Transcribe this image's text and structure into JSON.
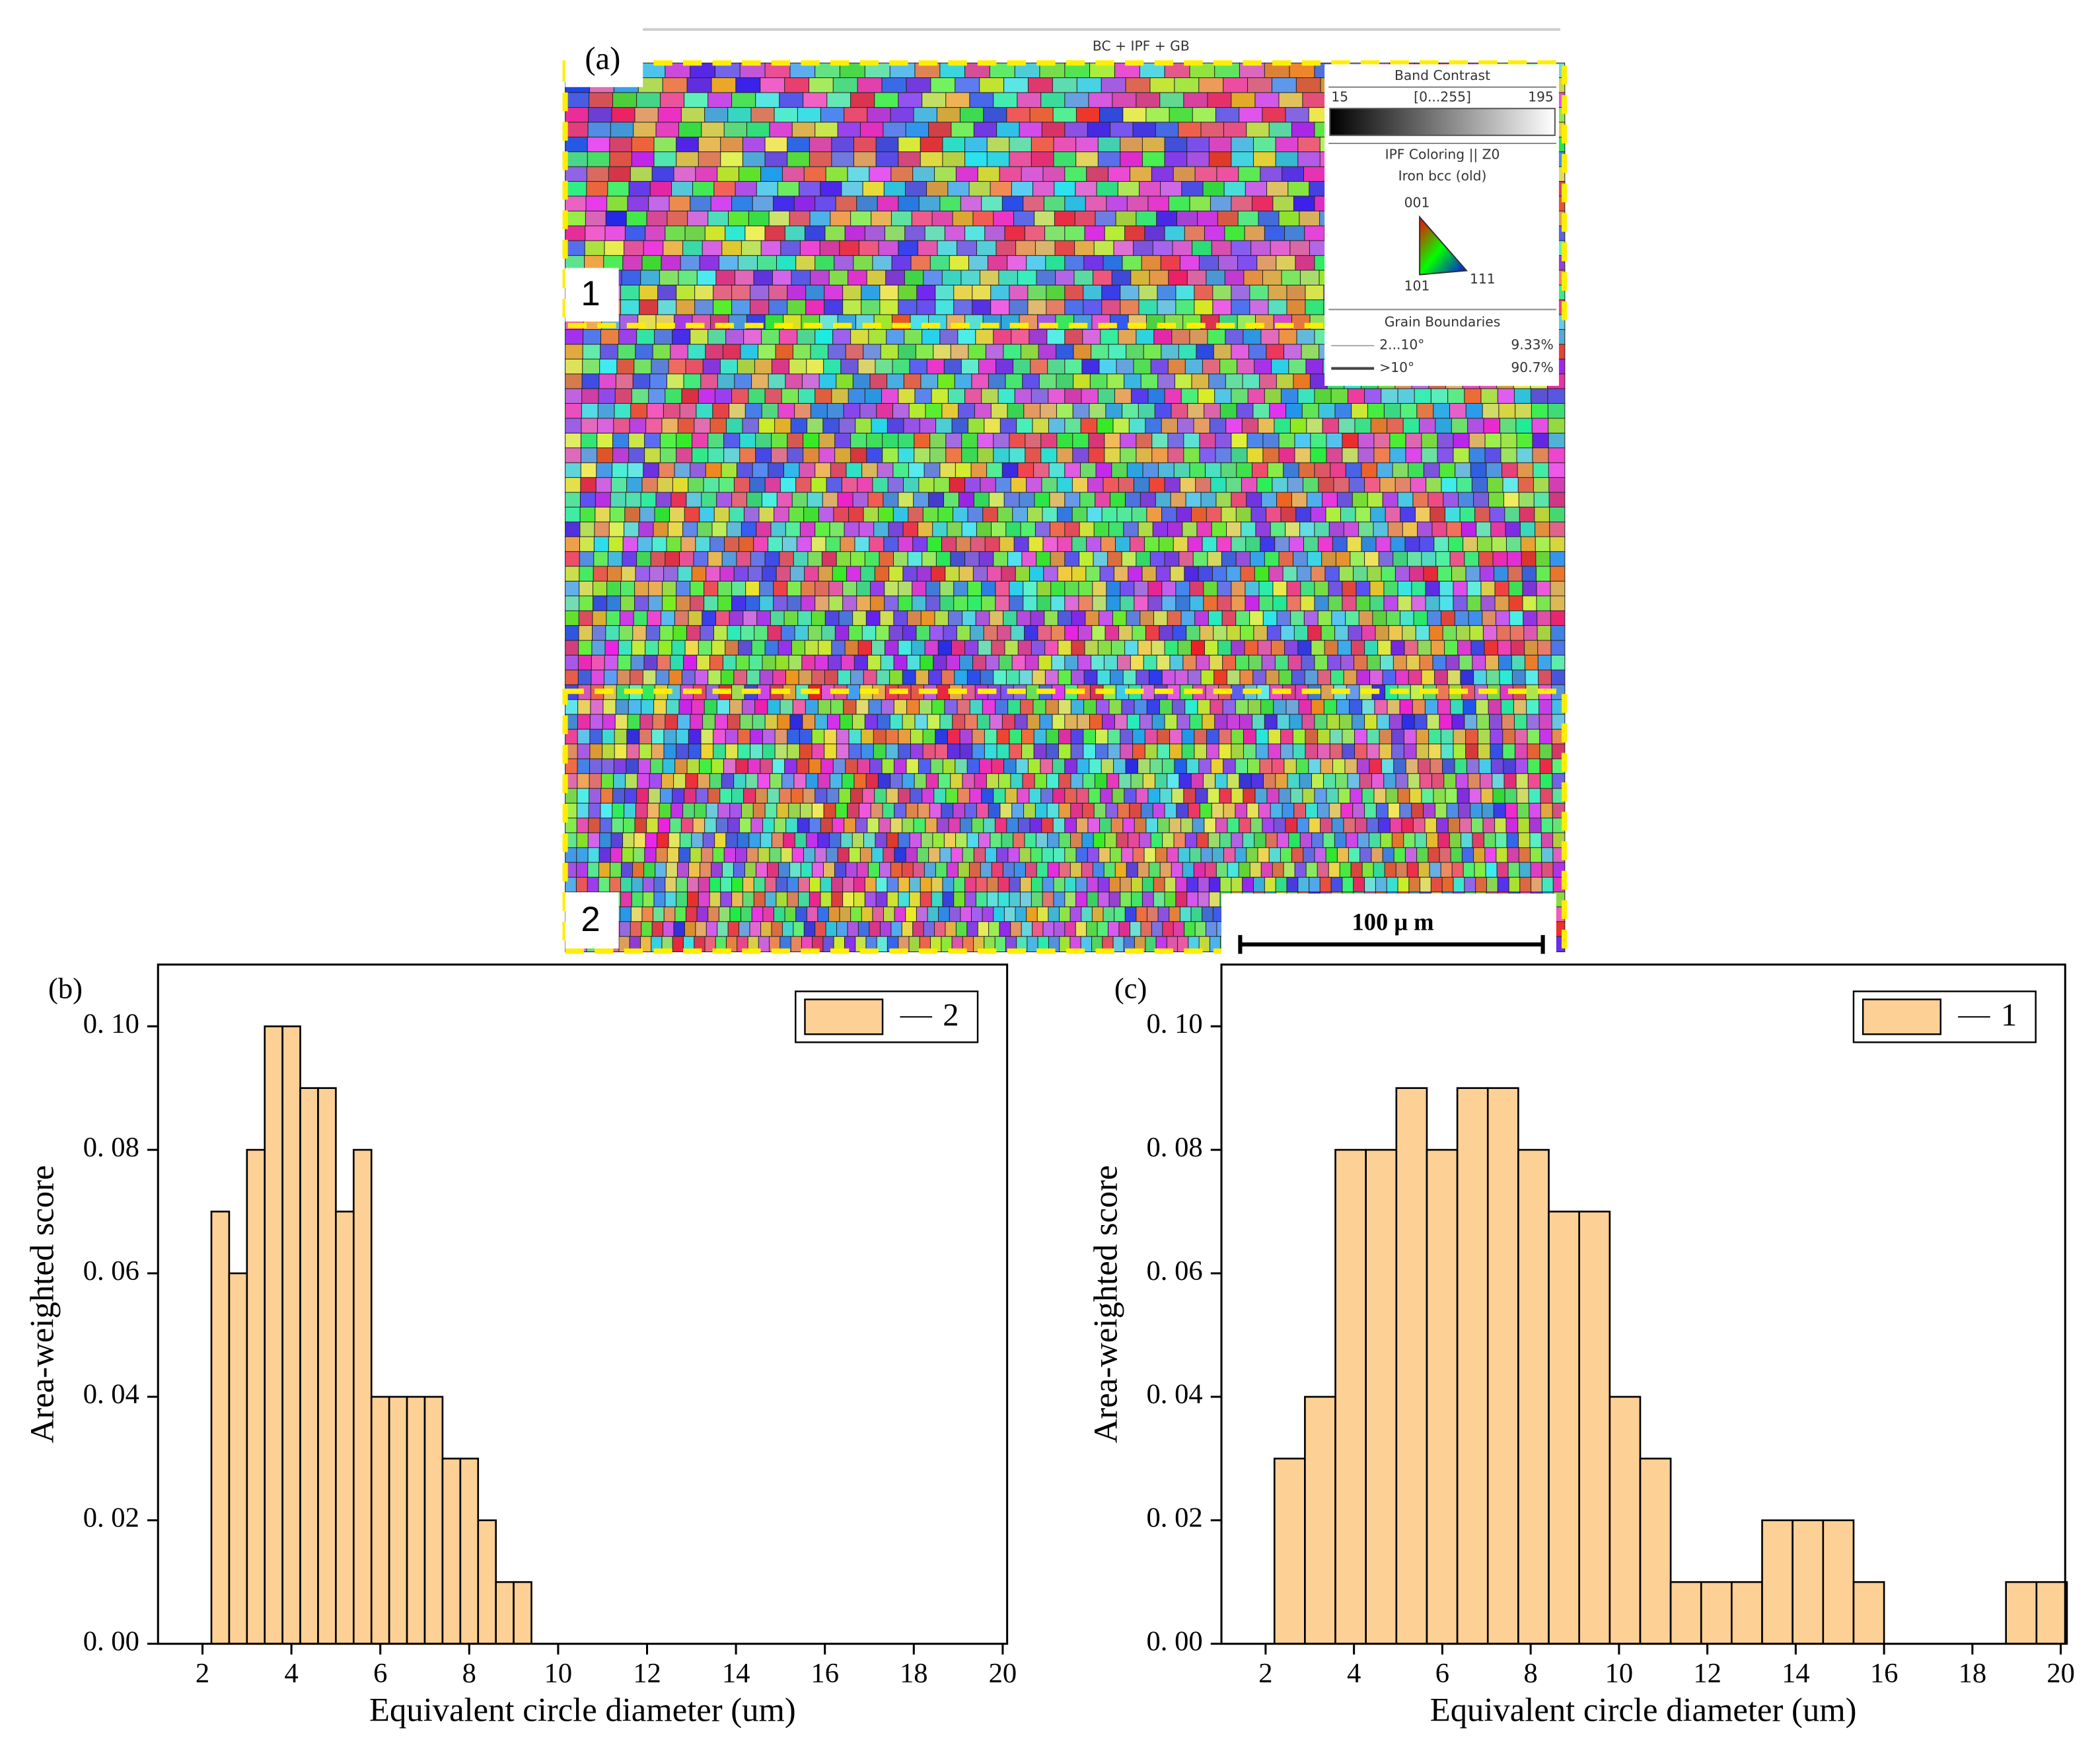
{
  "map": {
    "panel_label": "(a)",
    "title": "BC + IPF + GB",
    "region_labels": [
      "1",
      "2"
    ],
    "scale_bar": "100 μ m",
    "legend": {
      "band_title": "Band Contrast",
      "band_min": "15",
      "band_range": "[0...255]",
      "band_max": "195",
      "ipf_title": "IPF Coloring || Z0",
      "phase": "Iron bcc (old)",
      "poles": [
        "001",
        "101",
        "111"
      ],
      "gb_title": "Grain Boundaries",
      "gb_rows": [
        [
          "2...10°",
          "9.33%"
        ],
        [
          ">10°",
          "90.7%"
        ]
      ]
    }
  },
  "chart_data": [
    {
      "type": "histogram",
      "panel_label": "(b)",
      "xlabel": "Equivalent circle diameter (um)",
      "ylabel": "Area-weighted score",
      "bins": [
        2.2,
        2.6,
        3.0,
        3.4,
        3.8,
        4.2,
        4.6,
        5.0,
        5.4,
        5.8,
        6.2,
        6.6,
        7.0,
        7.4,
        7.8,
        8.2,
        8.6,
        9.0,
        9.4
      ],
      "series": [
        {
          "name": "2",
          "color": "#fdd096",
          "values": [
            0.07,
            0.06,
            0.08,
            0.1,
            0.1,
            0.09,
            0.09,
            0.07,
            0.08,
            0.04,
            0.04,
            0.04,
            0.04,
            0.03,
            0.03,
            0.02,
            0.01,
            0.01
          ]
        }
      ],
      "xlim": [
        1,
        20.1
      ],
      "ylim": [
        0,
        0.11
      ],
      "xticks": [
        2,
        4,
        6,
        8,
        10,
        12,
        14,
        16,
        18,
        20
      ],
      "yticks": [
        {
          "value": 0,
          "label": "0. 00"
        },
        {
          "value": 0.02,
          "label": "0. 02"
        },
        {
          "value": 0.04,
          "label": "0. 04"
        },
        {
          "value": 0.06,
          "label": "0. 06"
        },
        {
          "value": 0.08,
          "label": "0. 08"
        },
        {
          "value": 0.1,
          "label": "0. 10"
        }
      ],
      "legend": "upper right"
    },
    {
      "type": "histogram",
      "panel_label": "(c)",
      "xlabel": "Equivalent circle diameter (um)",
      "ylabel": "Area-weighted score",
      "bins": [
        2.2,
        2.89,
        3.58,
        4.27,
        4.96,
        5.65,
        6.34,
        7.03,
        7.72,
        8.41,
        9.1,
        9.79,
        10.48,
        11.17,
        11.86,
        12.55,
        13.24,
        13.93,
        14.62,
        15.31,
        16.0,
        16.69,
        17.38,
        18.07,
        18.76,
        19.45,
        20.14
      ],
      "series": [
        {
          "name": "1",
          "color": "#fdd096",
          "values": [
            0.03,
            0.04,
            0.08,
            0.08,
            0.09,
            0.08,
            0.09,
            0.09,
            0.08,
            0.07,
            0.07,
            0.04,
            0.03,
            0.01,
            0.01,
            0.01,
            0.02,
            0.02,
            0.02,
            0.01,
            0,
            0,
            0,
            0,
            0.01,
            0.01
          ]
        }
      ],
      "xlim": [
        1,
        20.1
      ],
      "ylim": [
        0,
        0.11
      ],
      "xticks": [
        2,
        4,
        6,
        8,
        10,
        12,
        14,
        16,
        18,
        20
      ],
      "yticks": [
        {
          "value": 0,
          "label": "0. 00"
        },
        {
          "value": 0.02,
          "label": "0. 02"
        },
        {
          "value": 0.04,
          "label": "0. 04"
        },
        {
          "value": 0.06,
          "label": "0. 06"
        },
        {
          "value": 0.08,
          "label": "0. 08"
        },
        {
          "value": 0.1,
          "label": "0. 10"
        }
      ],
      "legend": "upper right"
    }
  ]
}
